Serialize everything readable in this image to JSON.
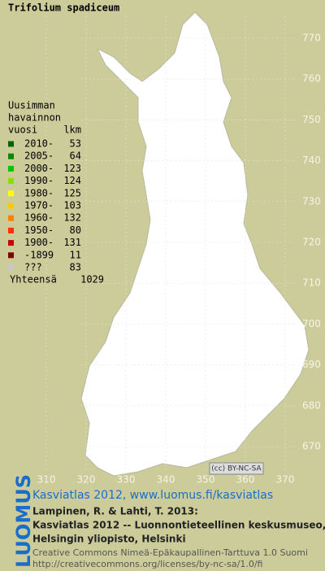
{
  "title": "Trifolium spadiceum",
  "legend": {
    "heading": [
      "Uusimman",
      "havainnon"
    ],
    "col_year": "vuosi",
    "col_count": "lkm",
    "items": [
      {
        "label": "2010-",
        "count": 53,
        "color": "#006400"
      },
      {
        "label": "2005-",
        "count": 64,
        "color": "#008a00"
      },
      {
        "label": "2000-",
        "count": 123,
        "color": "#00c800"
      },
      {
        "label": "1990-",
        "count": 124,
        "color": "#88e000"
      },
      {
        "label": "1980-",
        "count": 125,
        "color": "#ffff00"
      },
      {
        "label": "1970-",
        "count": 103,
        "color": "#ffc800"
      },
      {
        "label": "1960-",
        "count": 132,
        "color": "#ff8000"
      },
      {
        "label": "1950-",
        "count": 80,
        "color": "#ff3000"
      },
      {
        "label": "1900-",
        "count": 131,
        "color": "#c80000"
      },
      {
        "label": "-1899",
        "count": 11,
        "color": "#800000"
      },
      {
        "label": "???",
        "count": 83,
        "color": "#c8c8c8"
      }
    ],
    "total_label": "Yhteensä",
    "total": 1029
  },
  "grid": {
    "northing": [
      770,
      760,
      750,
      740,
      730,
      720,
      710,
      700,
      690,
      680,
      670
    ],
    "easting": [
      310,
      320,
      330,
      340,
      350,
      360,
      370
    ]
  },
  "license_badge": "(cc) BY-NC-SA",
  "brand": "LUOMUS",
  "credits": {
    "link": "Kasviatlas 2012, www.luomus.fi/kasviatlas",
    "lines": [
      "Lampinen, R. & Lahti, T. 2013:",
      "Kasviatlas 2012 -- Luonnontieteellinen keskusmuseo,",
      "Helsingin yliopisto, Helsinki"
    ],
    "license": [
      "Creative Commons Nimeä-Epäkaupallinen-Tarttuva 1.0 Suomi",
      "http://creativecommons.org/licenses/by-nc-sa/1.0/fi"
    ]
  }
}
